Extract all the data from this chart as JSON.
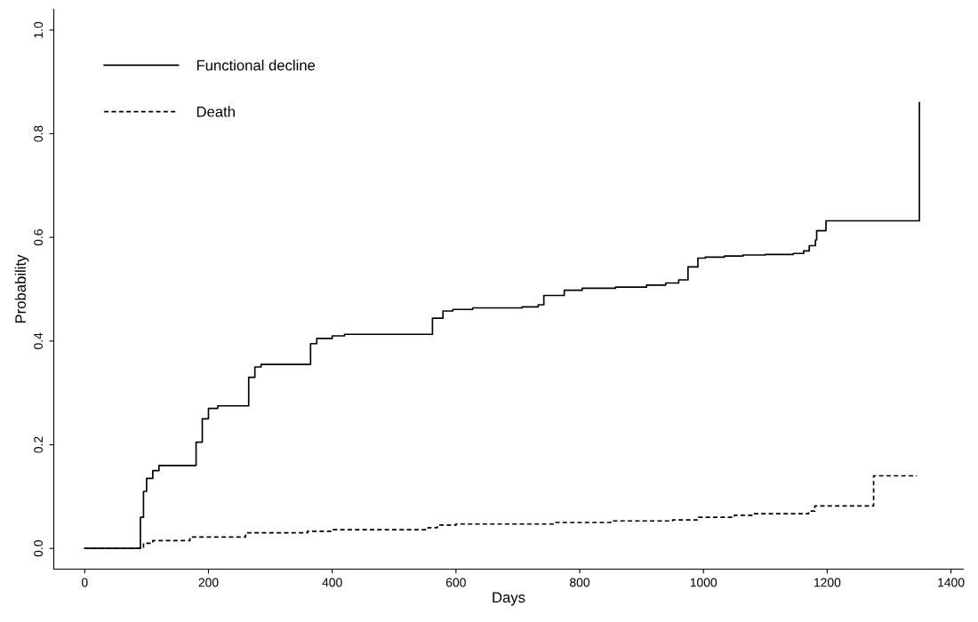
{
  "chart_data": {
    "type": "step",
    "xlabel": "Days",
    "ylabel": "Probability",
    "xlim": [
      -50,
      1420
    ],
    "ylim": [
      -0.04,
      1.04
    ],
    "xticks": [
      0,
      200,
      400,
      600,
      800,
      1000,
      1200,
      1400
    ],
    "yticks": [
      {
        "value": 0,
        "label": "0.0"
      },
      0.2,
      0.4,
      0.6,
      0.8,
      {
        "value": 1,
        "label": "1.0"
      }
    ],
    "grid": false,
    "legend": "top left",
    "marker": "none",
    "series": [
      {
        "name": "Functional decline",
        "color": "#000000",
        "line_style": "solid",
        "x": [
          0,
          85,
          90,
          95,
          100,
          110,
          120,
          170,
          180,
          190,
          200,
          215,
          255,
          265,
          275,
          285,
          355,
          365,
          375,
          400,
          420,
          541,
          562,
          579,
          595,
          627,
          707,
          733,
          742,
          775,
          804,
          858,
          908,
          939,
          960,
          975,
          991,
          1003,
          1034,
          1064,
          1100,
          1145,
          1162,
          1171,
          1181,
          1183,
          1198,
          1349,
          1349
        ],
        "values": [
          0,
          0,
          0.06,
          0.11,
          0.135,
          0.15,
          0.16,
          0.16,
          0.205,
          0.25,
          0.27,
          0.275,
          0.275,
          0.33,
          0.35,
          0.355,
          0.355,
          0.395,
          0.405,
          0.41,
          0.413,
          0.413,
          0.444,
          0.458,
          0.461,
          0.464,
          0.466,
          0.47,
          0.488,
          0.498,
          0.502,
          0.504,
          0.508,
          0.512,
          0.518,
          0.543,
          0.56,
          0.562,
          0.564,
          0.566,
          0.567,
          0.569,
          0.574,
          0.584,
          0.595,
          0.613,
          0.632,
          0.632,
          0.86
        ]
      },
      {
        "name": "Death",
        "color": "#000000",
        "line_style": "dashed",
        "x": [
          0,
          85,
          95,
          110,
          170,
          260,
          360,
          400,
          555,
          570,
          600,
          760,
          850,
          950,
          990,
          1050,
          1080,
          1170,
          1180,
          1275,
          1345
        ],
        "values": [
          0,
          0,
          0.01,
          0.015,
          0.022,
          0.03,
          0.033,
          0.036,
          0.04,
          0.045,
          0.047,
          0.05,
          0.053,
          0.055,
          0.06,
          0.064,
          0.067,
          0.072,
          0.082,
          0.14,
          0.14
        ]
      }
    ]
  }
}
